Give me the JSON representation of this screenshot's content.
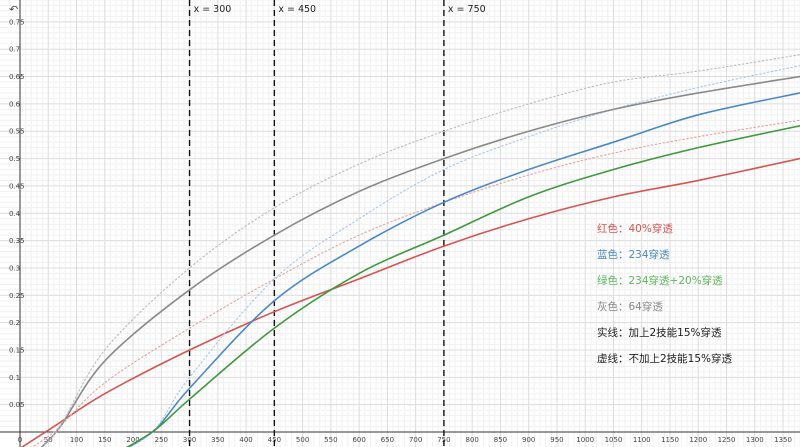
{
  "chart_data": {
    "type": "line",
    "xlim": [
      0,
      1380
    ],
    "ylim": [
      0,
      0.79
    ],
    "x_ticks": [
      "0",
      "50",
      "100",
      "150",
      "200",
      "250",
      "300",
      "350",
      "400",
      "450",
      "500",
      "550",
      "600",
      "650",
      "700",
      "750",
      "800",
      "850",
      "900",
      "950",
      "1000",
      "1050",
      "1100",
      "1150",
      "1200",
      "1250",
      "1300",
      "1350"
    ],
    "y_ticks": [
      "0.05",
      "0.1",
      "0.15",
      "0.2",
      "0.25",
      "0.3",
      "0.35",
      "0.4",
      "0.45",
      "0.5",
      "0.55",
      "0.6",
      "0.65",
      "0.7",
      "0.75"
    ],
    "grid": true,
    "vertical_lines": [
      {
        "x": 300,
        "label": "x = 300"
      },
      {
        "x": 450,
        "label": "x = 450"
      },
      {
        "x": 750,
        "label": "x = 750"
      }
    ],
    "series": [
      {
        "color": "#d9534f",
        "style": "solid",
        "x": [
          0,
          60,
          150,
          300,
          450,
          600,
          750,
          900,
          1050,
          1200,
          1380
        ],
        "y": [
          -0.03,
          0.01,
          0.07,
          0.15,
          0.22,
          0.28,
          0.34,
          0.39,
          0.43,
          0.46,
          0.5
        ]
      },
      {
        "color": "#e8a0a0",
        "style": "dotted",
        "x": [
          0,
          60,
          150,
          300,
          450,
          600,
          750,
          900,
          1050,
          1200,
          1380
        ],
        "y": [
          -0.04,
          0.0,
          0.09,
          0.19,
          0.28,
          0.36,
          0.42,
          0.47,
          0.51,
          0.54,
          0.57
        ]
      },
      {
        "color": "#4a89c8",
        "style": "solid",
        "x": [
          150,
          234,
          300,
          450,
          600,
          750,
          900,
          1050,
          1200,
          1380
        ],
        "y": [
          -0.05,
          0.0,
          0.08,
          0.24,
          0.34,
          0.42,
          0.48,
          0.53,
          0.58,
          0.62
        ]
      },
      {
        "color": "#a6c6e6",
        "style": "dotted",
        "x": [
          150,
          234,
          300,
          450,
          600,
          750,
          900,
          1050,
          1200,
          1380
        ],
        "y": [
          -0.05,
          0.0,
          0.1,
          0.28,
          0.39,
          0.48,
          0.54,
          0.59,
          0.63,
          0.67
        ]
      },
      {
        "color": "#3e9a3e",
        "style": "solid",
        "x": [
          150,
          234,
          300,
          450,
          600,
          750,
          900,
          1050,
          1200,
          1380
        ],
        "y": [
          -0.05,
          0.0,
          0.06,
          0.19,
          0.29,
          0.36,
          0.43,
          0.48,
          0.52,
          0.56
        ]
      },
      {
        "color": "#8a8a8a",
        "style": "solid",
        "x": [
          0,
          64,
          150,
          300,
          450,
          600,
          750,
          900,
          1050,
          1200,
          1380
        ],
        "y": [
          -0.06,
          0.0,
          0.13,
          0.26,
          0.36,
          0.44,
          0.5,
          0.55,
          0.59,
          0.62,
          0.65
        ]
      },
      {
        "color": "#bbbbbb",
        "style": "dotted",
        "x": [
          0,
          64,
          150,
          300,
          450,
          600,
          750,
          900,
          1050,
          1200,
          1380
        ],
        "y": [
          -0.06,
          0.0,
          0.15,
          0.3,
          0.41,
          0.49,
          0.55,
          0.6,
          0.64,
          0.66,
          0.69
        ]
      }
    ],
    "legend": {
      "placement": "right",
      "entries": [
        {
          "text": "红色：40%穿透",
          "color": "#d9534f"
        },
        {
          "text": "蓝色：234穿透",
          "color": "#4a89c8"
        },
        {
          "text": "绿色：234穿透+20%穿透",
          "color": "#5cb85c"
        },
        {
          "text": "灰色：64穿透",
          "color": "#888888"
        },
        {
          "text": "实线：加上2技能15%穿透",
          "color": "#222222"
        },
        {
          "text": "虚线：不加上2技能15%穿透",
          "color": "#222222"
        }
      ]
    }
  },
  "ui": {
    "corner_glyph": "↶"
  }
}
